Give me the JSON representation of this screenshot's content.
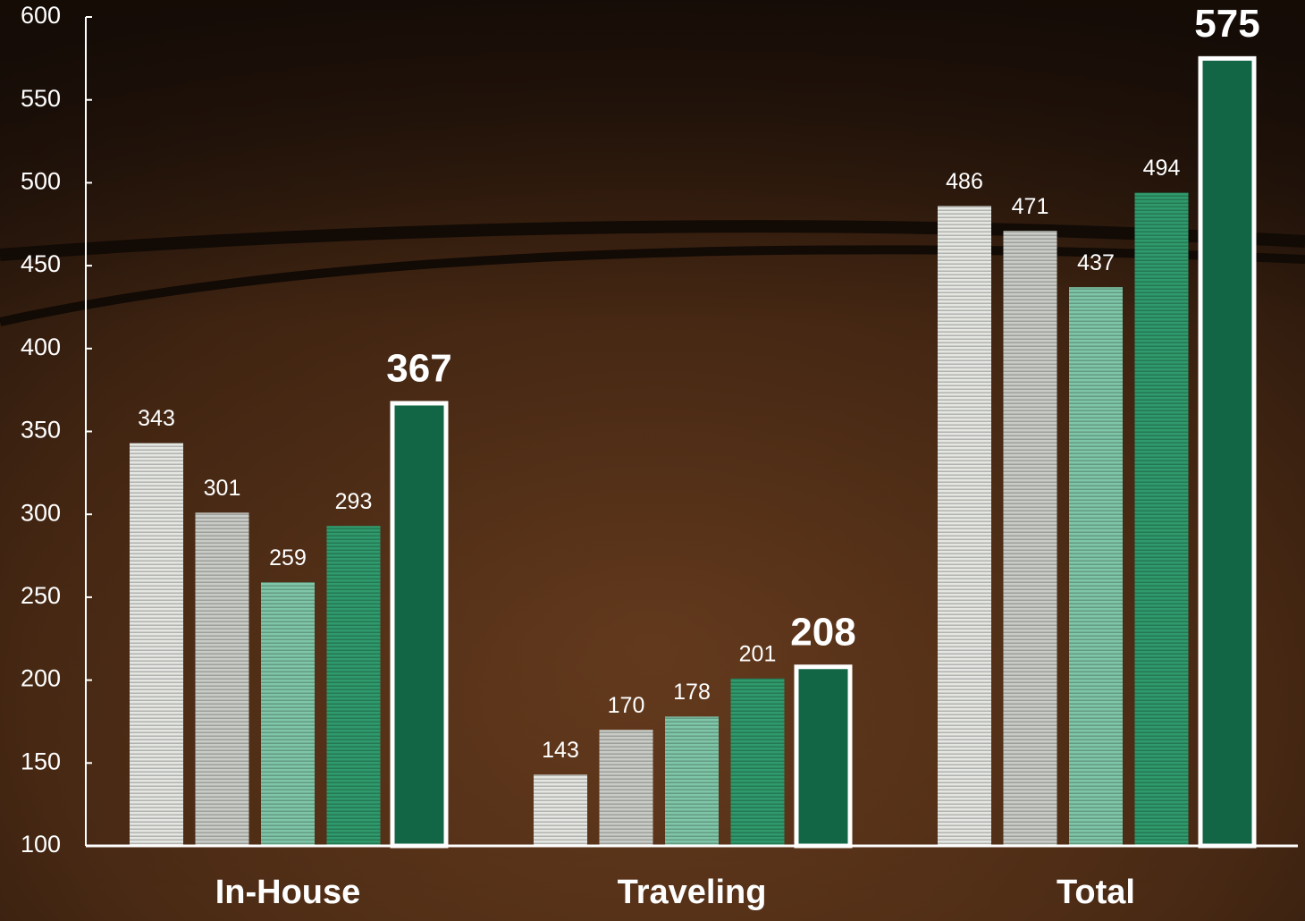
{
  "chart_data": {
    "type": "bar",
    "categories": [
      "In-House",
      "Traveling",
      "Total"
    ],
    "series": [
      {
        "color": "#e4e6e1",
        "striped": true,
        "values": [
          343,
          143,
          486
        ]
      },
      {
        "color": "#c9ccc6",
        "striped": true,
        "values": [
          301,
          170,
          471
        ]
      },
      {
        "color": "#7fc6a8",
        "striped": true,
        "values": [
          259,
          178,
          437
        ]
      },
      {
        "color": "#2f9a6c",
        "striped": true,
        "values": [
          293,
          201,
          494
        ]
      },
      {
        "color": "#136645",
        "striped": false,
        "outline": "#ffffff",
        "values": [
          367,
          208,
          575
        ]
      }
    ],
    "ylim": [
      100,
      600
    ],
    "yticks": [
      100,
      150,
      200,
      250,
      300,
      350,
      400,
      450,
      500,
      550,
      600
    ],
    "grid": false
  }
}
